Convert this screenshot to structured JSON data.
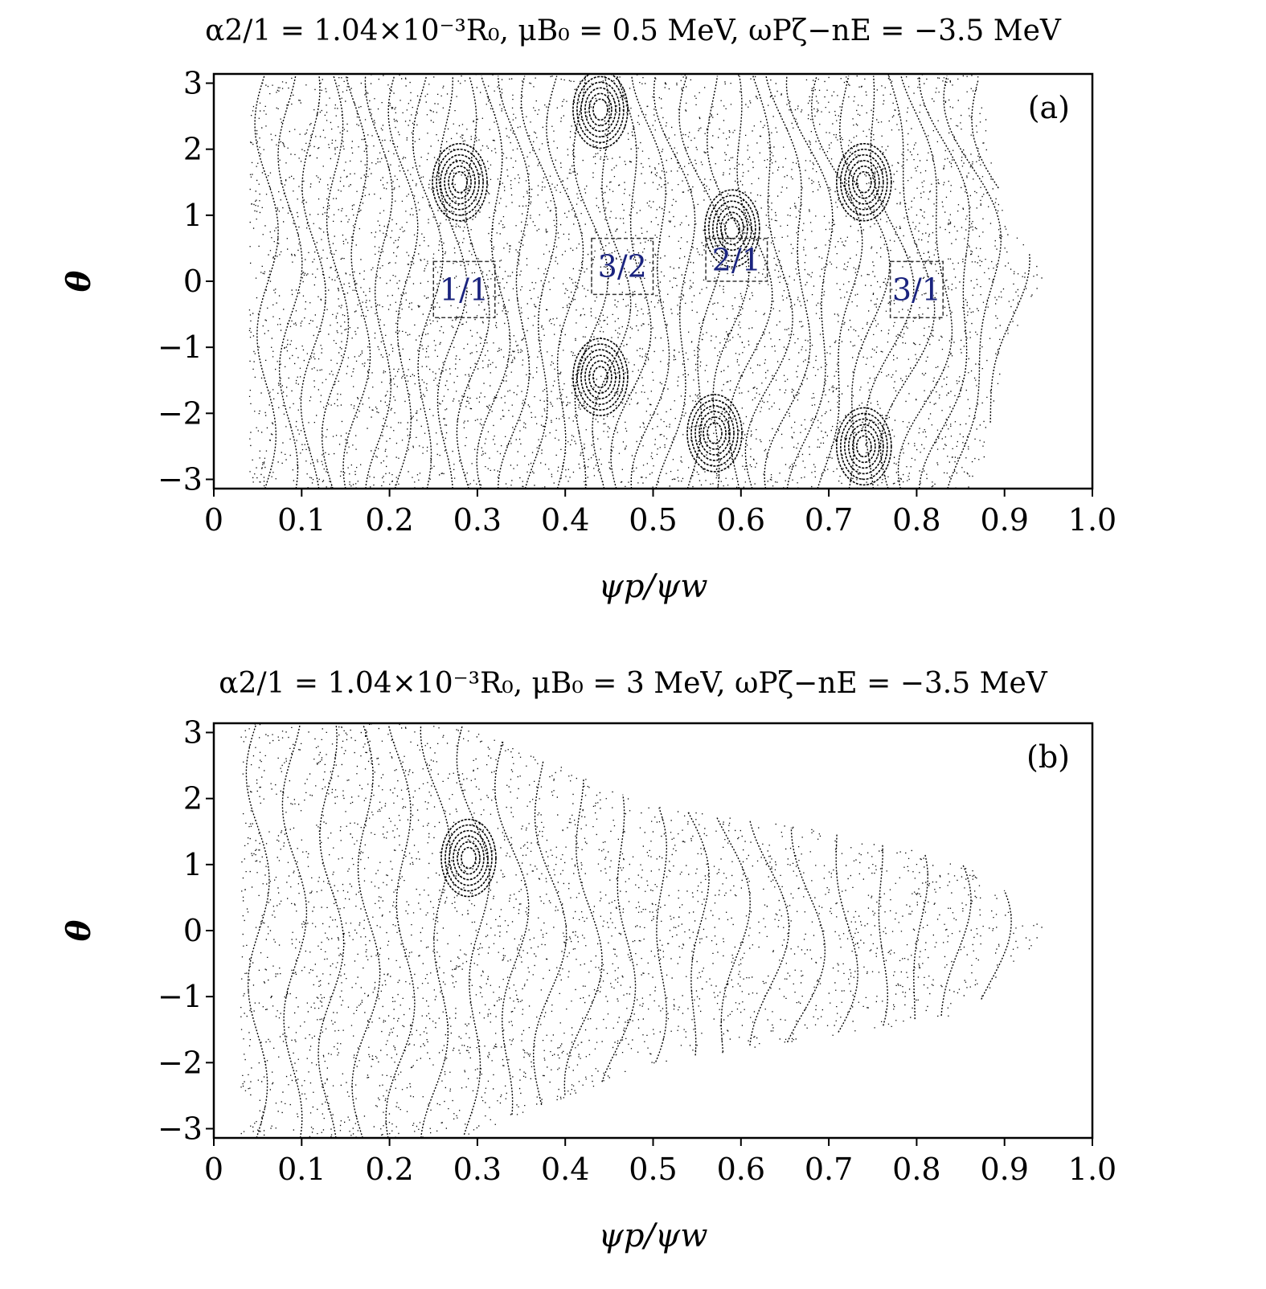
{
  "chart_data": [
    {
      "type": "scatter",
      "panel_label": "(a)",
      "title": "α2/1 = 1.04×10⁻³R₀, μB₀ = 0.5 MeV, ωPζ−nE = −3.5 MeV",
      "xlabel": "ψp/ψw",
      "ylabel": "θ",
      "xlim": [
        0,
        1.0
      ],
      "ylim": [
        -3.14,
        3.14
      ],
      "xticks": [
        "0",
        "0.1",
        "0.2",
        "0.3",
        "0.4",
        "0.5",
        "0.6",
        "0.7",
        "0.8",
        "0.9",
        "1.0"
      ],
      "yticks": [
        "3",
        "2",
        "1",
        "0",
        "−1",
        "−2",
        "−3"
      ],
      "grid": false,
      "point_color": "#000000",
      "boundary": {
        "x_min": 0.04,
        "tip": [
          0.95,
          0.0
        ],
        "right_edge": [
          [
            0.87,
            3.14
          ],
          [
            0.9,
            1.0
          ],
          [
            0.95,
            0.0
          ],
          [
            0.9,
            -1.0
          ],
          [
            0.87,
            -3.14
          ]
        ]
      },
      "islands": [
        {
          "label": "1/1",
          "x": 0.29,
          "y": -0.15,
          "box": [
            0.25,
            0.32,
            -0.55,
            0.3
          ],
          "label_color": "#1a237e"
        },
        {
          "label": "3/2",
          "x": 0.46,
          "y": 0.2,
          "box": [
            0.43,
            0.5,
            -0.2,
            0.65
          ],
          "label_color": "#1a237e"
        },
        {
          "label": "2/1",
          "x": 0.59,
          "y": 0.4,
          "box": [
            0.56,
            0.63,
            0.0,
            0.65
          ],
          "label_color": "#1a237e"
        },
        {
          "label": "3/1",
          "x": 0.8,
          "y": -0.15,
          "box": [
            0.77,
            0.83,
            -0.55,
            0.3
          ],
          "label_color": "#1a237e"
        }
      ],
      "o_points": [
        [
          0.28,
          1.5
        ],
        [
          0.44,
          2.6
        ],
        [
          0.44,
          -1.45
        ],
        [
          0.59,
          0.8
        ],
        [
          0.57,
          -2.3
        ],
        [
          0.74,
          1.5
        ],
        [
          0.74,
          -2.5
        ]
      ]
    },
    {
      "type": "scatter",
      "panel_label": "(b)",
      "title": "α2/1 = 1.04×10⁻³R₀, μB₀ = 3 MeV, ωPζ−nE = −3.5 MeV",
      "xlabel": "ψp/ψw",
      "ylabel": "θ",
      "xlim": [
        0,
        1.0
      ],
      "ylim": [
        -3.14,
        3.14
      ],
      "xticks": [
        "0",
        "0.1",
        "0.2",
        "0.3",
        "0.4",
        "0.5",
        "0.6",
        "0.7",
        "0.8",
        "0.9",
        "1.0"
      ],
      "yticks": [
        "3",
        "2",
        "1",
        "0",
        "−1",
        "−2",
        "−3"
      ],
      "grid": false,
      "point_color": "#000000",
      "boundary": {
        "x_min": 0.03,
        "tip": [
          0.95,
          0.0
        ],
        "top_edge": [
          [
            0.03,
            3.14
          ],
          [
            0.28,
            3.14
          ],
          [
            0.5,
            1.9
          ],
          [
            0.7,
            1.5
          ],
          [
            0.87,
            1.0
          ],
          [
            0.95,
            0.0
          ]
        ],
        "bottom_edge": [
          [
            0.03,
            -3.14
          ],
          [
            0.28,
            -3.14
          ],
          [
            0.5,
            -2.0
          ],
          [
            0.7,
            -1.6
          ],
          [
            0.86,
            -1.25
          ],
          [
            0.95,
            0.0
          ]
        ]
      },
      "islands": [],
      "o_points": [
        [
          0.29,
          1.1
        ]
      ]
    }
  ]
}
